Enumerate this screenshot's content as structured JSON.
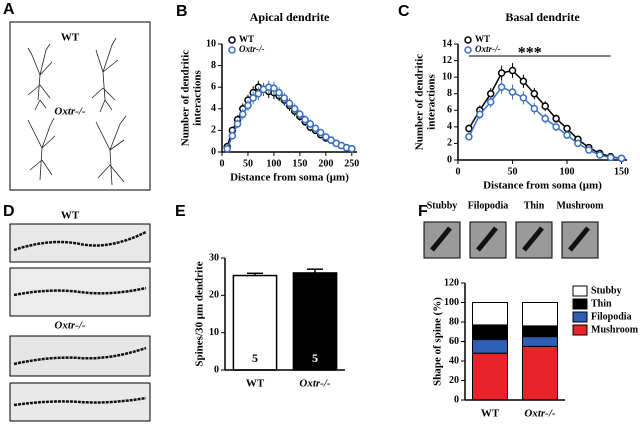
{
  "panel_labels": [
    "A",
    "B",
    "C",
    "D",
    "E",
    "F"
  ],
  "neuron_panel": {
    "labels": [
      "WT",
      "Oxtr-/-"
    ]
  },
  "spine_panel": {
    "labels": [
      "WT",
      "Oxtr-/-"
    ]
  },
  "chart_data": [
    {
      "type": "line",
      "title": "Apical dendrite",
      "ylabel": [
        "Number of dendritic",
        "interactions"
      ],
      "xlabel": "Distance from soma (μm)",
      "x": [
        10,
        20,
        30,
        40,
        50,
        60,
        70,
        80,
        90,
        100,
        110,
        120,
        130,
        140,
        150,
        160,
        170,
        180,
        190,
        200,
        210,
        220,
        230,
        240,
        250
      ],
      "series": [
        {
          "name": "WT",
          "color": "#000000",
          "values": [
            0.5,
            2,
            3,
            4,
            4.8,
            5.5,
            6,
            5.8,
            5.6,
            5.5,
            5.2,
            4.8,
            4.3,
            3.8,
            3.3,
            2.8,
            2.3,
            2,
            1.6,
            1.3,
            1.1,
            0.8,
            0.6,
            0.4,
            0.3
          ],
          "errors": [
            0.2,
            0.3,
            0.4,
            0.5,
            0.5,
            0.6,
            0.6,
            0.6,
            0.6,
            0.6,
            0.5,
            0.5,
            0.5,
            0.5,
            0.4,
            0.4,
            0.4,
            0.3,
            0.3,
            0.3,
            0.3,
            0.2,
            0.2,
            0.2,
            0.2
          ]
        },
        {
          "name": "Oxtr-/-",
          "color": "#3a6fc4",
          "values": [
            0.3,
            1.5,
            2.6,
            3.5,
            4.3,
            5,
            5.4,
            5.8,
            6,
            5.9,
            5.5,
            5,
            4.5,
            4,
            3.5,
            3,
            2.6,
            2.2,
            1.8,
            1.4,
            1.1,
            0.8,
            0.6,
            0.4,
            0.3
          ],
          "errors": [
            0.2,
            0.3,
            0.4,
            0.5,
            0.5,
            0.6,
            0.6,
            0.6,
            0.6,
            0.6,
            0.5,
            0.5,
            0.5,
            0.5,
            0.4,
            0.4,
            0.4,
            0.3,
            0.3,
            0.3,
            0.3,
            0.2,
            0.2,
            0.2,
            0.2
          ]
        }
      ],
      "xlim": [
        0,
        260
      ],
      "xticks": [
        0,
        50,
        100,
        150,
        200,
        250
      ],
      "ylim": [
        0,
        10
      ],
      "yticks": [
        0,
        2,
        4,
        6,
        8,
        10
      ]
    },
    {
      "type": "line",
      "title": "Basal dendrite",
      "ylabel": [
        "Number of dendritic",
        "interactions"
      ],
      "xlabel": "Distance from soma (μm)",
      "annotation": "***",
      "x": [
        10,
        20,
        30,
        40,
        50,
        60,
        70,
        80,
        90,
        100,
        110,
        120,
        130,
        140,
        150
      ],
      "series": [
        {
          "name": "WT",
          "color": "#000000",
          "values": [
            3.8,
            6,
            8,
            10.5,
            10.8,
            9.5,
            8,
            6.5,
            5,
            3.8,
            2.5,
            1.5,
            0.8,
            0.4,
            0.2
          ],
          "errors": [
            0.5,
            0.6,
            0.7,
            0.9,
            0.9,
            0.8,
            0.7,
            0.6,
            0.5,
            0.4,
            0.4,
            0.3,
            0.2,
            0.2,
            0.1
          ]
        },
        {
          "name": "Oxtr-/-",
          "color": "#3a6fc4",
          "values": [
            2.8,
            5.5,
            7,
            8.8,
            8.2,
            7.5,
            6.2,
            5,
            4,
            3,
            2,
            1.2,
            0.6,
            0.3,
            0.2
          ],
          "errors": [
            0.4,
            0.6,
            0.7,
            0.8,
            0.9,
            0.8,
            0.7,
            0.6,
            0.5,
            0.4,
            0.3,
            0.3,
            0.2,
            0.2,
            0.1
          ]
        }
      ],
      "xlim": [
        0,
        155
      ],
      "xticks": [
        0,
        50,
        100,
        150
      ],
      "ylim": [
        0,
        14
      ],
      "yticks": [
        0,
        2,
        4,
        6,
        8,
        10,
        12,
        14
      ]
    },
    {
      "type": "bar",
      "ylabel": "Spines/30 μm dendrite",
      "categories": [
        "WT",
        "Oxtr-/-"
      ],
      "values": [
        25.3,
        26
      ],
      "errors": [
        0.6,
        1
      ],
      "n": [
        5,
        5
      ],
      "colors": [
        "#ffffff",
        "#000000"
      ],
      "ylim": [
        0,
        30
      ],
      "yticks": [
        0,
        10,
        20,
        30
      ]
    },
    {
      "type": "stacked_bar",
      "ylabel": "Shape of spine (%)",
      "categories": [
        "WT",
        "Oxtr-/-"
      ],
      "series": [
        {
          "name": "Mushroom",
          "color": "#e8242a",
          "values": [
            48,
            55
          ]
        },
        {
          "name": "Filopodia",
          "color": "#2f5fb5",
          "values": [
            14,
            10
          ]
        },
        {
          "name": "Thin",
          "color": "#000000",
          "values": [
            15,
            11
          ]
        },
        {
          "name": "Stubby",
          "color": "#ffffff",
          "values": [
            23,
            24
          ]
        }
      ],
      "ylim": [
        0,
        120
      ],
      "yticks": [
        0,
        20,
        40,
        60,
        80,
        100,
        120
      ]
    }
  ]
}
